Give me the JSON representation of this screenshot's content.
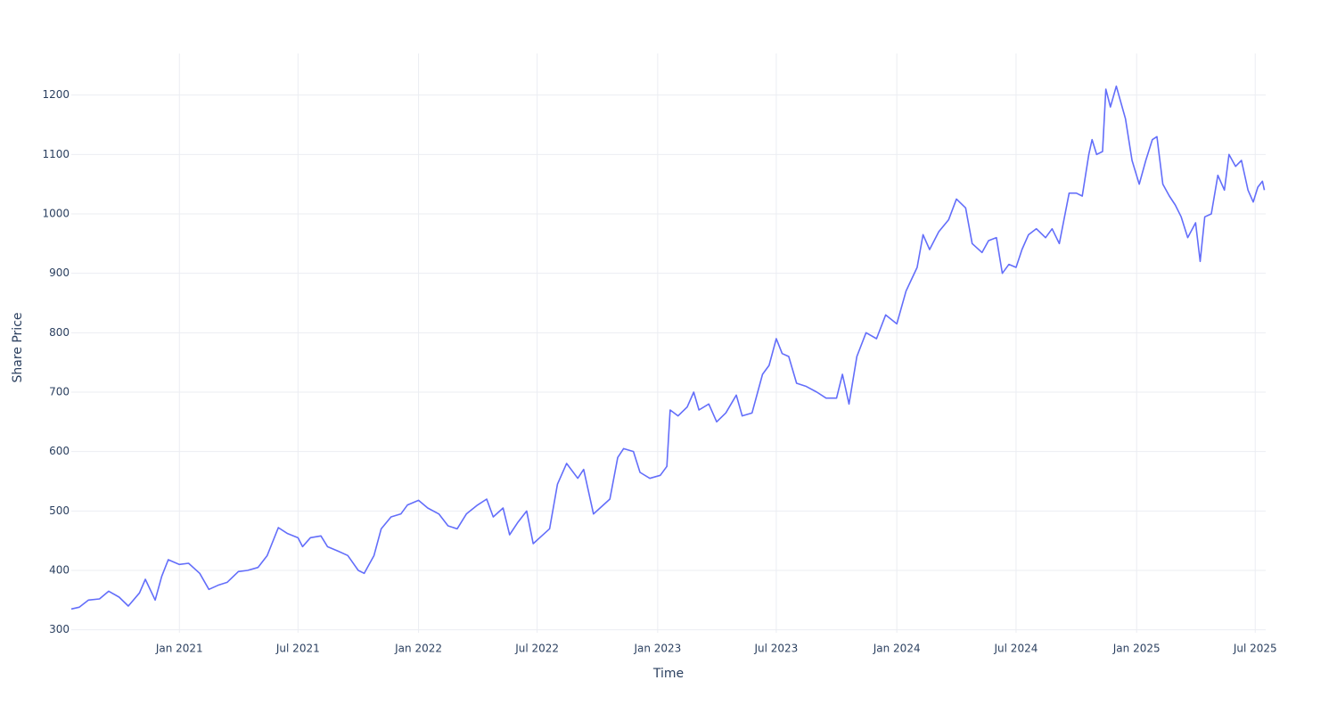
{
  "chart_data": {
    "type": "line",
    "x_label": "Time",
    "y_label": "Share Price",
    "color": "#636efa",
    "grid": true,
    "xlim": [
      "2020-07-20",
      "2025-07-17"
    ],
    "xticks": [
      {
        "value": "2021-01-01",
        "label": "Jan 2021"
      },
      {
        "value": "2021-07-01",
        "label": "Jul 2021"
      },
      {
        "value": "2022-01-01",
        "label": "Jan 2022"
      },
      {
        "value": "2022-07-01",
        "label": "Jul 2022"
      },
      {
        "value": "2023-01-01",
        "label": "Jan 2023"
      },
      {
        "value": "2023-07-01",
        "label": "Jul 2023"
      },
      {
        "value": "2024-01-01",
        "label": "Jan 2024"
      },
      {
        "value": "2024-07-01",
        "label": "Jul 2024"
      },
      {
        "value": "2025-01-01",
        "label": "Jan 2025"
      },
      {
        "value": "2025-07-01",
        "label": "Jul 2025"
      }
    ],
    "ylim": [
      295,
      1270
    ],
    "yticks": [
      300,
      400,
      500,
      600,
      700,
      800,
      900,
      1000,
      1100,
      1200
    ],
    "x": [
      "2020-07-20",
      "2020-08-01",
      "2020-08-15",
      "2020-09-01",
      "2020-09-15",
      "2020-10-01",
      "2020-10-15",
      "2020-11-01",
      "2020-11-10",
      "2020-11-25",
      "2020-12-05",
      "2020-12-15",
      "2021-01-01",
      "2021-01-15",
      "2021-02-01",
      "2021-02-15",
      "2021-03-01",
      "2021-03-15",
      "2021-04-01",
      "2021-04-15",
      "2021-05-01",
      "2021-05-15",
      "2021-06-01",
      "2021-06-15",
      "2021-07-01",
      "2021-07-08",
      "2021-07-20",
      "2021-08-05",
      "2021-08-15",
      "2021-09-01",
      "2021-09-15",
      "2021-10-01",
      "2021-10-10",
      "2021-10-25",
      "2021-11-05",
      "2021-11-20",
      "2021-12-05",
      "2021-12-15",
      "2022-01-01",
      "2022-01-15",
      "2022-02-01",
      "2022-02-15",
      "2022-03-01",
      "2022-03-15",
      "2022-04-01",
      "2022-04-15",
      "2022-04-25",
      "2022-05-10",
      "2022-05-20",
      "2022-06-01",
      "2022-06-15",
      "2022-06-25",
      "2022-07-05",
      "2022-07-20",
      "2022-08-01",
      "2022-08-15",
      "2022-09-01",
      "2022-09-10",
      "2022-09-25",
      "2022-10-05",
      "2022-10-20",
      "2022-11-01",
      "2022-11-10",
      "2022-11-25",
      "2022-12-05",
      "2022-12-20",
      "2023-01-05",
      "2023-01-15",
      "2023-01-20",
      "2023-02-01",
      "2023-02-15",
      "2023-02-25",
      "2023-03-05",
      "2023-03-20",
      "2023-04-01",
      "2023-04-15",
      "2023-05-01",
      "2023-05-10",
      "2023-05-25",
      "2023-06-10",
      "2023-06-20",
      "2023-07-01",
      "2023-07-10",
      "2023-07-20",
      "2023-08-01",
      "2023-08-15",
      "2023-09-01",
      "2023-09-15",
      "2023-10-01",
      "2023-10-10",
      "2023-10-20",
      "2023-11-01",
      "2023-11-15",
      "2023-12-01",
      "2023-12-15",
      "2024-01-01",
      "2024-01-15",
      "2024-02-01",
      "2024-02-10",
      "2024-02-20",
      "2024-03-05",
      "2024-03-20",
      "2024-04-01",
      "2024-04-15",
      "2024-04-25",
      "2024-05-10",
      "2024-05-20",
      "2024-06-01",
      "2024-06-10",
      "2024-06-20",
      "2024-07-01",
      "2024-07-10",
      "2024-07-20",
      "2024-08-01",
      "2024-08-15",
      "2024-08-25",
      "2024-09-05",
      "2024-09-20",
      "2024-10-01",
      "2024-10-10",
      "2024-10-20",
      "2024-10-25",
      "2024-11-01",
      "2024-11-10",
      "2024-11-15",
      "2024-11-22",
      "2024-12-01",
      "2024-12-15",
      "2024-12-25",
      "2025-01-05",
      "2025-01-15",
      "2025-01-25",
      "2025-02-01",
      "2025-02-10",
      "2025-02-20",
      "2025-03-01",
      "2025-03-10",
      "2025-03-20",
      "2025-04-01",
      "2025-04-08",
      "2025-04-15",
      "2025-04-25",
      "2025-05-05",
      "2025-05-15",
      "2025-05-22",
      "2025-06-01",
      "2025-06-10",
      "2025-06-20",
      "2025-06-28",
      "2025-07-05",
      "2025-07-12",
      "2025-07-15"
    ],
    "values": [
      335,
      338,
      350,
      352,
      365,
      355,
      340,
      362,
      385,
      350,
      390,
      418,
      410,
      412,
      395,
      368,
      375,
      380,
      398,
      400,
      405,
      425,
      472,
      462,
      455,
      440,
      455,
      458,
      440,
      432,
      425,
      400,
      395,
      425,
      470,
      490,
      495,
      510,
      518,
      505,
      495,
      475,
      470,
      495,
      510,
      520,
      490,
      505,
      460,
      480,
      500,
      445,
      455,
      470,
      545,
      580,
      555,
      570,
      495,
      505,
      520,
      590,
      605,
      600,
      565,
      555,
      560,
      575,
      670,
      660,
      675,
      700,
      670,
      680,
      650,
      665,
      695,
      660,
      665,
      730,
      745,
      790,
      765,
      760,
      715,
      710,
      700,
      690,
      690,
      730,
      680,
      760,
      800,
      790,
      830,
      815,
      870,
      910,
      965,
      940,
      970,
      990,
      1025,
      1010,
      950,
      935,
      955,
      960,
      900,
      915,
      910,
      940,
      965,
      975,
      960,
      975,
      950,
      1035,
      1035,
      1030,
      1100,
      1125,
      1100,
      1105,
      1210,
      1180,
      1215,
      1160,
      1090,
      1050,
      1090,
      1125,
      1130,
      1050,
      1030,
      1015,
      995,
      960,
      985,
      920,
      995,
      1000,
      1065,
      1040,
      1100,
      1080,
      1090,
      1040,
      1020,
      1045,
      1055,
      1040
    ]
  }
}
